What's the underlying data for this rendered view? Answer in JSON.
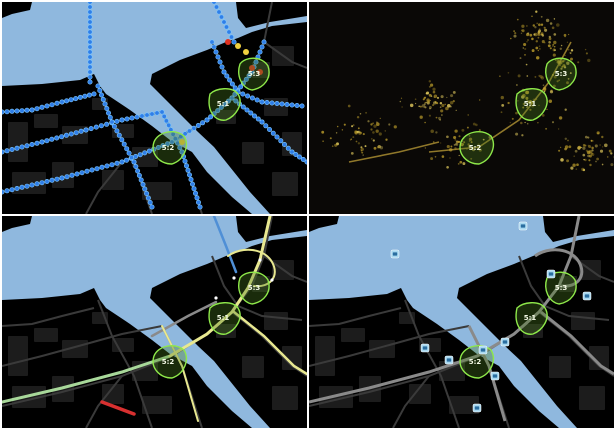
{
  "colors": {
    "water": "#8fb8de",
    "land_map": "#000000",
    "land_satellite": "#0a0806",
    "building": "#1c1c1c",
    "road": "#3a3a3a",
    "zone_stroke": "#8ee84a",
    "zone_fill": "#4a7a20",
    "heat_blue": "#2f7ee8",
    "heat_light": "#7ec8ff",
    "heat_yellow": "#f0d040",
    "heat_red": "#e03020",
    "traffic_green": "#a8d89a",
    "traffic_yellow": "#e8e890",
    "traffic_red": "#d83030",
    "traffic_blue": "#4f8fd6",
    "traffic_grey": "#8a8a8a",
    "poi_bg": "#a8d8f0"
  },
  "panels": [
    {
      "id": "heatmap",
      "layer": "wifi-device-density",
      "zones": [
        {
          "id": "5:1",
          "label": "5:1",
          "sub": ""
        },
        {
          "id": "5:2",
          "label": "5:2",
          "sub": ""
        },
        {
          "id": "5:3",
          "label": "5:3",
          "sub": ""
        }
      ]
    },
    {
      "id": "night-lights",
      "layer": "satellite-night",
      "zones": [
        {
          "id": "5:1",
          "label": "5:1",
          "sub": ""
        },
        {
          "id": "5:2",
          "label": "5:2",
          "sub": ""
        },
        {
          "id": "5:3",
          "label": "5:3",
          "sub": ""
        }
      ]
    },
    {
      "id": "traffic",
      "layer": "traffic-speed",
      "zones": [
        {
          "id": "5:1",
          "label": "5:1",
          "sub": ""
        },
        {
          "id": "5:2",
          "label": "5:2",
          "sub": ""
        },
        {
          "id": "5:3",
          "label": "5:3",
          "sub": ""
        }
      ]
    },
    {
      "id": "poi",
      "layer": "points-of-interest",
      "zones": [
        {
          "id": "5:1",
          "label": "5:1",
          "sub": ""
        },
        {
          "id": "5:2",
          "label": "5:2",
          "sub": ""
        },
        {
          "id": "5:3",
          "label": "5:3",
          "sub": ""
        }
      ],
      "poi_icons": [
        "bus-icon",
        "car-icon",
        "parking-icon",
        "info-icon",
        "lodging-icon",
        "taxi-icon",
        "parking-icon",
        "shop-icon",
        "bus-icon",
        "parking-icon"
      ]
    }
  ]
}
